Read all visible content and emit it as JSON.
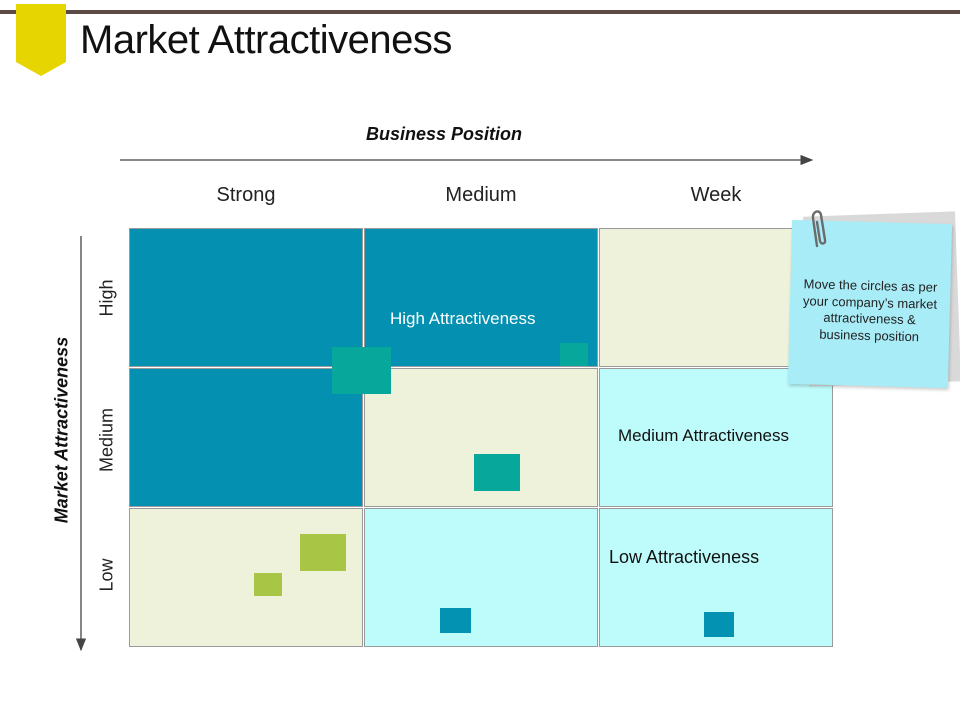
{
  "title": "Market Attractiveness",
  "x_axis": {
    "label": "Business Position",
    "columns": [
      "Strong",
      "Medium",
      "Week"
    ]
  },
  "y_axis": {
    "label": "Market Attractiveness",
    "rows": [
      "High",
      "Medium",
      "Low"
    ]
  },
  "cell_labels": {
    "high": "High Attractiveness",
    "medium": "Medium Attractiveness",
    "low": "Low Attractiveness"
  },
  "note": {
    "text": "Move the circles as per your company’s market attractiveness & business position"
  },
  "colors": {
    "high": "#0390b1",
    "medium": "#eef2da",
    "low": "#bdfcfb",
    "marker_teal": "#08a79b",
    "marker_green": "#a9c545",
    "marker_blue": "#0492b2",
    "bookmark": "#e6d500",
    "sticky_note": "#a8ecf7"
  }
}
